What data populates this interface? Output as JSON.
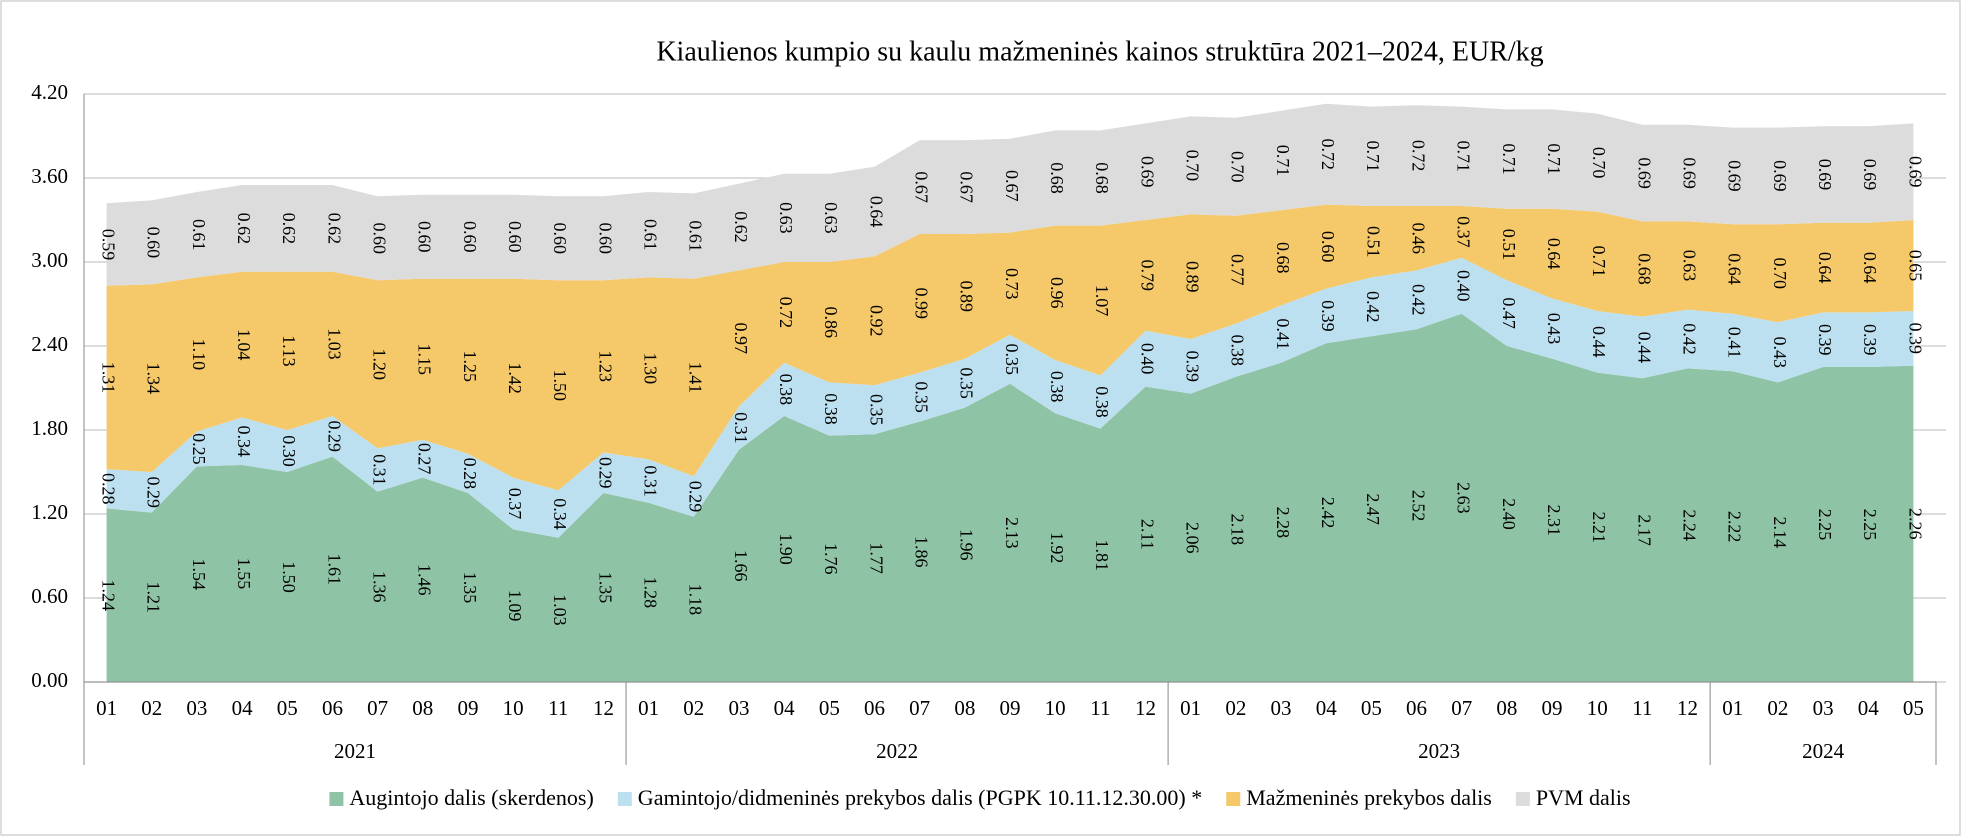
{
  "chart_data": {
    "type": "stacked_area",
    "title": "Kiaulienos kumpio su kaulu mažmeninės kainos struktūra 2021–2024, EUR/kg",
    "categories": [
      "01",
      "02",
      "03",
      "04",
      "05",
      "06",
      "07",
      "08",
      "09",
      "10",
      "11",
      "12",
      "01",
      "02",
      "03",
      "04",
      "05",
      "06",
      "07",
      "08",
      "09",
      "10",
      "11",
      "12",
      "01",
      "02",
      "03",
      "04",
      "05",
      "06",
      "07",
      "08",
      "09",
      "10",
      "11",
      "12",
      "01",
      "02",
      "03",
      "04",
      "05"
    ],
    "x_groups": [
      {
        "name": "2021",
        "size": 12
      },
      {
        "name": "2022",
        "size": 12
      },
      {
        "name": "2023",
        "size": 12
      },
      {
        "name": "2024",
        "size": 5
      }
    ],
    "ylim": [
      0,
      4.2
    ],
    "yticks": [
      {
        "value": 0,
        "label": "0.00"
      },
      {
        "value": 0.6,
        "label": "0.60"
      },
      {
        "value": 1.2,
        "label": "1.20"
      },
      {
        "value": 1.8,
        "label": "1.80"
      },
      {
        "value": 2.4,
        "label": "2.40"
      },
      {
        "value": 3,
        "label": "3.00"
      },
      {
        "value": 3.6,
        "label": "3.60"
      },
      {
        "value": 4.2,
        "label": "4.20"
      }
    ],
    "grid": true,
    "legend": "bottom",
    "series": [
      {
        "name": "Augintojo dalis (skerdenos)",
        "color": "#8fc3a6",
        "values": [
          1.24,
          1.21,
          1.54,
          1.55,
          1.5,
          1.61,
          1.36,
          1.46,
          1.35,
          1.09,
          1.03,
          1.35,
          1.28,
          1.18,
          1.66,
          1.9,
          1.76,
          1.77,
          1.86,
          1.96,
          2.13,
          1.92,
          1.81,
          2.11,
          2.06,
          2.18,
          2.28,
          2.42,
          2.47,
          2.52,
          2.63,
          2.4,
          2.31,
          2.21,
          2.17,
          2.24,
          2.22,
          2.14,
          2.25,
          2.25,
          2.26
        ],
        "value_labels": [
          "1.24",
          "1.21",
          "1.54",
          "1.55",
          "1.50",
          "1.61",
          "1.36",
          "1.46",
          "1.35",
          "1.09",
          "1.03",
          "1.35",
          "1.28",
          "1.18",
          "1.66",
          "1.90",
          "1.76",
          "1.77",
          "1.86",
          "1.96",
          "2.13",
          "1.92",
          "1.81",
          "2.11",
          "2.06",
          "2.18",
          "2.28",
          "2.42",
          "2.47",
          "2.52",
          "2.63",
          "2.40",
          "2.31",
          "2.21",
          "2.17",
          "2.24",
          "2.22",
          "2.14",
          "2.25",
          "2.25",
          "2.26"
        ]
      },
      {
        "name": "Gamintojo/didmeninės prekybos dalis (PGPK 10.11.12.30.00) *",
        "color": "#bde0f0",
        "values": [
          0.28,
          0.29,
          0.25,
          0.34,
          0.3,
          0.29,
          0.31,
          0.27,
          0.28,
          0.37,
          0.34,
          0.29,
          0.31,
          0.29,
          0.31,
          0.38,
          0.38,
          0.35,
          0.35,
          0.35,
          0.35,
          0.38,
          0.38,
          0.4,
          0.39,
          0.38,
          0.41,
          0.39,
          0.42,
          0.42,
          0.4,
          0.47,
          0.43,
          0.44,
          0.44,
          0.42,
          0.41,
          0.43,
          0.39,
          0.39,
          0.39
        ],
        "value_labels": [
          "0.28",
          "0.29",
          "0.25",
          "0.34",
          "0.30",
          "0.29",
          "0.31",
          "0.27",
          "0.28",
          "0.37",
          "0.34",
          "0.29",
          "0.31",
          "0.29",
          "0.31",
          "0.38",
          "0.38",
          "0.35",
          "0.35",
          "0.35",
          "0.35",
          "0.38",
          "0.38",
          "0.40",
          "0.39",
          "0.38",
          "0.41",
          "0.39",
          "0.42",
          "0.42",
          "0.40",
          "0.47",
          "0.43",
          "0.44",
          "0.44",
          "0.42",
          "0.41",
          "0.43",
          "0.39",
          "0.39",
          "0.39"
        ]
      },
      {
        "name": "Mažmeninės prekybos dalis",
        "color": "#f5c869",
        "values": [
          1.31,
          1.34,
          1.1,
          1.04,
          1.13,
          1.03,
          1.2,
          1.15,
          1.25,
          1.42,
          1.5,
          1.23,
          1.3,
          1.41,
          0.97,
          0.72,
          0.86,
          0.92,
          0.99,
          0.89,
          0.73,
          0.96,
          1.07,
          0.79,
          0.89,
          0.77,
          0.68,
          0.6,
          0.51,
          0.46,
          0.37,
          0.51,
          0.64,
          0.71,
          0.68,
          0.63,
          0.64,
          0.7,
          0.64,
          0.64,
          0.65
        ],
        "value_labels": [
          "1.31",
          "1.34",
          "1.10",
          "1.04",
          "1.13",
          "1.03",
          "1.20",
          "1.15",
          "1.25",
          "1.42",
          "1.50",
          "1.23",
          "1.30",
          "1.41",
          "0.97",
          "0.72",
          "0.86",
          "0.92",
          "0.99",
          "0.89",
          "0.73",
          "0.96",
          "1.07",
          "0.79",
          "0.89",
          "0.77",
          "0.68",
          "0.60",
          "0.51",
          "0.46",
          "0.37",
          "0.51",
          "0.64",
          "0.71",
          "0.68",
          "0.63",
          "0.64",
          "0.70",
          "0.64",
          "0.64",
          "0.65"
        ]
      },
      {
        "name": "PVM dalis",
        "color": "#dcdcdc",
        "values": [
          0.59,
          0.6,
          0.61,
          0.62,
          0.62,
          0.62,
          0.6,
          0.6,
          0.6,
          0.6,
          0.6,
          0.6,
          0.61,
          0.61,
          0.62,
          0.63,
          0.63,
          0.64,
          0.67,
          0.67,
          0.67,
          0.68,
          0.68,
          0.69,
          0.7,
          0.7,
          0.71,
          0.72,
          0.71,
          0.72,
          0.71,
          0.71,
          0.71,
          0.7,
          0.69,
          0.69,
          0.69,
          0.69,
          0.69,
          0.69,
          0.69
        ],
        "value_labels": [
          "0.59",
          "0.60",
          "0.61",
          "0.62",
          "0.62",
          "0.62",
          "0.60",
          "0.60",
          "0.60",
          "0.60",
          "0.60",
          "0.60",
          "0.61",
          "0.61",
          "0.62",
          "0.63",
          "0.63",
          "0.64",
          "0.67",
          "0.67",
          "0.67",
          "0.68",
          "0.68",
          "0.69",
          "0.70",
          "0.70",
          "0.71",
          "0.72",
          "0.71",
          "0.72",
          "0.71",
          "0.71",
          "0.71",
          "0.70",
          "0.69",
          "0.69",
          "0.69",
          "0.69",
          "0.69",
          "0.69",
          "0.69"
        ]
      }
    ]
  }
}
